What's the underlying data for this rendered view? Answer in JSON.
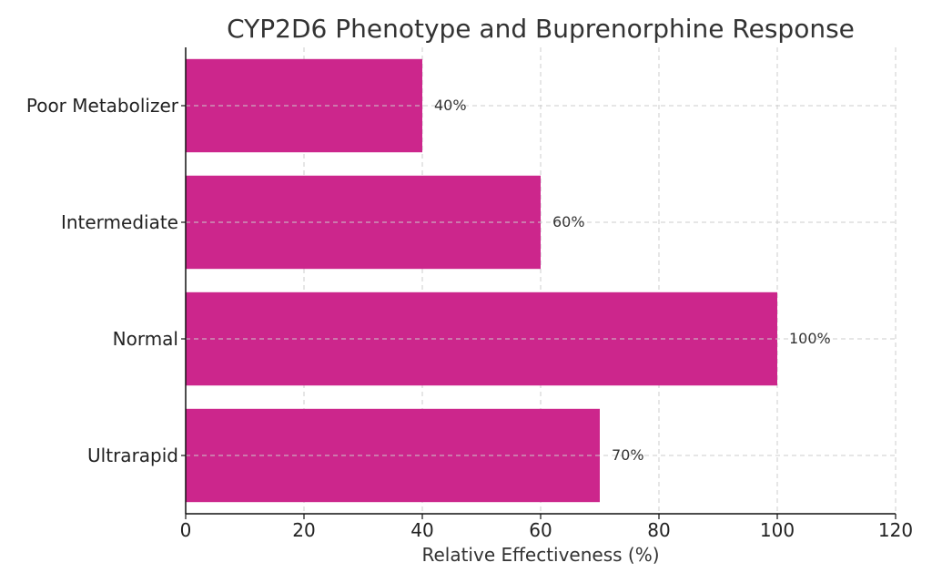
{
  "chart_data": {
    "type": "bar",
    "orientation": "horizontal",
    "title": "CYP2D6 Phenotype and Buprenorphine Response",
    "xlabel": "Relative Effectiveness (%)",
    "ylabel": "",
    "categories": [
      "Poor Metabolizer",
      "Intermediate",
      "Normal",
      "Ultrarapid"
    ],
    "values": [
      40,
      60,
      100,
      70
    ],
    "value_labels": [
      "40%",
      "60%",
      "100%",
      "70%"
    ],
    "xlim": [
      0,
      120
    ],
    "xticks": [
      0,
      20,
      40,
      60,
      80,
      100,
      120
    ],
    "grid": true,
    "bar_color": "#cc268c"
  }
}
